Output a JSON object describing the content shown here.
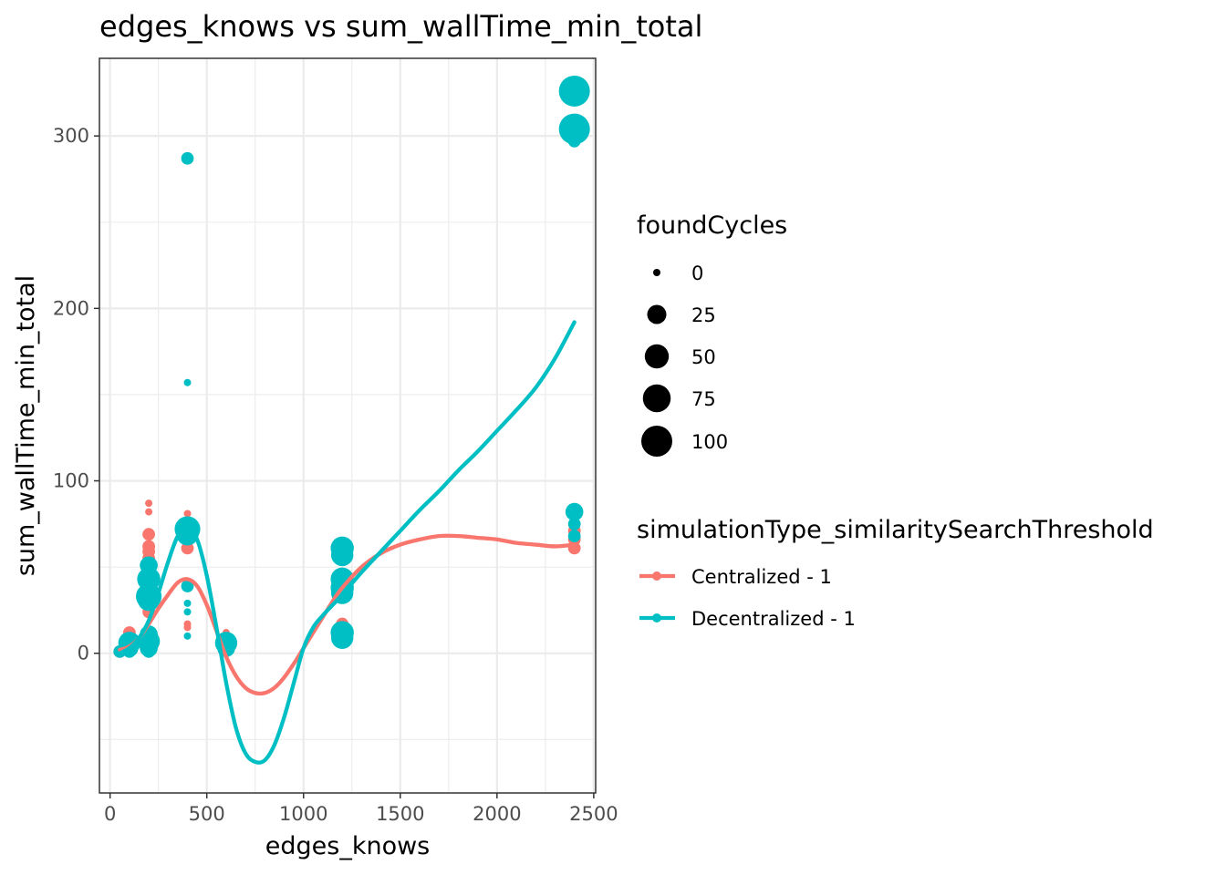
{
  "chart_data": {
    "type": "scatter",
    "title": "edges_knows  vs  sum_wallTime_min_total",
    "xlabel": "edges_knows",
    "ylabel": "sum_wallTime_min_total",
    "xlim": [
      -55,
      2510
    ],
    "ylim": [
      -81,
      345
    ],
    "x_ticks": [
      0,
      500,
      1000,
      1500,
      2000,
      2500
    ],
    "y_ticks": [
      0,
      100,
      200,
      300
    ],
    "grid": true,
    "size_legend": {
      "title": "foundCycles",
      "entries": [
        {
          "label": "0",
          "value": 0
        },
        {
          "label": "25",
          "value": 25
        },
        {
          "label": "50",
          "value": 50
        },
        {
          "label": "75",
          "value": 75
        },
        {
          "label": "100",
          "value": 100
        }
      ]
    },
    "color_legend": {
      "title": "simulationType_similaritySearchThreshold",
      "placement": "right"
    },
    "series": [
      {
        "name": "Centralized - 1",
        "color": "#F8766D",
        "points": [
          {
            "x": 50,
            "y": 1,
            "size": 5
          },
          {
            "x": 100,
            "y": 12,
            "size": 5
          },
          {
            "x": 100,
            "y": 8,
            "size": 5
          },
          {
            "x": 100,
            "y": 4,
            "size": 5
          },
          {
            "x": 200,
            "y": 87,
            "size": 0
          },
          {
            "x": 200,
            "y": 82,
            "size": 0
          },
          {
            "x": 200,
            "y": 69,
            "size": 5
          },
          {
            "x": 200,
            "y": 62,
            "size": 5
          },
          {
            "x": 200,
            "y": 59,
            "size": 5
          },
          {
            "x": 200,
            "y": 55,
            "size": 5
          },
          {
            "x": 200,
            "y": 40,
            "size": 5
          },
          {
            "x": 200,
            "y": 30,
            "size": 5
          },
          {
            "x": 200,
            "y": 24,
            "size": 5
          },
          {
            "x": 200,
            "y": 12,
            "size": 5
          },
          {
            "x": 200,
            "y": 8,
            "size": 5
          },
          {
            "x": 400,
            "y": 81,
            "size": 0
          },
          {
            "x": 400,
            "y": 69,
            "size": 5
          },
          {
            "x": 400,
            "y": 61,
            "size": 5
          },
          {
            "x": 400,
            "y": 17,
            "size": 0
          },
          {
            "x": 400,
            "y": 15,
            "size": 0
          },
          {
            "x": 600,
            "y": 12,
            "size": 0
          },
          {
            "x": 600,
            "y": 9,
            "size": 0
          },
          {
            "x": 1200,
            "y": 62,
            "size": 5
          },
          {
            "x": 1200,
            "y": 41,
            "size": 5
          },
          {
            "x": 1200,
            "y": 17,
            "size": 5
          },
          {
            "x": 1200,
            "y": 12,
            "size": 5
          },
          {
            "x": 2400,
            "y": 71,
            "size": 5
          },
          {
            "x": 2400,
            "y": 66,
            "size": 5
          },
          {
            "x": 2400,
            "y": 61,
            "size": 5
          }
        ],
        "smooth": [
          {
            "x": 50,
            "y": 2
          },
          {
            "x": 100,
            "y": 4
          },
          {
            "x": 150,
            "y": 9
          },
          {
            "x": 200,
            "y": 17
          },
          {
            "x": 250,
            "y": 26
          },
          {
            "x": 300,
            "y": 34
          },
          {
            "x": 350,
            "y": 41
          },
          {
            "x": 400,
            "y": 43
          },
          {
            "x": 450,
            "y": 39
          },
          {
            "x": 500,
            "y": 28
          },
          {
            "x": 550,
            "y": 13
          },
          {
            "x": 600,
            "y": -2
          },
          {
            "x": 650,
            "y": -13
          },
          {
            "x": 700,
            "y": -20
          },
          {
            "x": 750,
            "y": -23
          },
          {
            "x": 800,
            "y": -23
          },
          {
            "x": 850,
            "y": -20
          },
          {
            "x": 900,
            "y": -14
          },
          {
            "x": 950,
            "y": -6
          },
          {
            "x": 1000,
            "y": 3
          },
          {
            "x": 1050,
            "y": 12
          },
          {
            "x": 1100,
            "y": 21
          },
          {
            "x": 1150,
            "y": 30
          },
          {
            "x": 1200,
            "y": 38
          },
          {
            "x": 1300,
            "y": 50
          },
          {
            "x": 1400,
            "y": 58
          },
          {
            "x": 1500,
            "y": 63
          },
          {
            "x": 1600,
            "y": 66
          },
          {
            "x": 1700,
            "y": 68
          },
          {
            "x": 1800,
            "y": 68
          },
          {
            "x": 1900,
            "y": 67
          },
          {
            "x": 2000,
            "y": 66
          },
          {
            "x": 2100,
            "y": 64
          },
          {
            "x": 2200,
            "y": 63
          },
          {
            "x": 2300,
            "y": 62
          },
          {
            "x": 2400,
            "y": 63
          }
        ]
      },
      {
        "name": "Decentralized - 1",
        "color": "#00BFC4",
        "points": [
          {
            "x": 50,
            "y": 1,
            "size": 5
          },
          {
            "x": 100,
            "y": 6,
            "size": 40
          },
          {
            "x": 100,
            "y": 3,
            "size": 20
          },
          {
            "x": 100,
            "y": 1,
            "size": 5
          },
          {
            "x": 200,
            "y": 51,
            "size": 20
          },
          {
            "x": 200,
            "y": 43,
            "size": 45
          },
          {
            "x": 200,
            "y": 33,
            "size": 60
          },
          {
            "x": 200,
            "y": 31,
            "size": 40
          },
          {
            "x": 200,
            "y": 11,
            "size": 20
          },
          {
            "x": 200,
            "y": 7,
            "size": 40
          },
          {
            "x": 200,
            "y": 3,
            "size": 20
          },
          {
            "x": 200,
            "y": 1,
            "size": 5
          },
          {
            "x": 400,
            "y": 287,
            "size": 5
          },
          {
            "x": 400,
            "y": 157,
            "size": 0
          },
          {
            "x": 400,
            "y": 72,
            "size": 60
          },
          {
            "x": 400,
            "y": 69,
            "size": 40
          },
          {
            "x": 400,
            "y": 39,
            "size": 5
          },
          {
            "x": 400,
            "y": 29,
            "size": 0
          },
          {
            "x": 400,
            "y": 24,
            "size": 0
          },
          {
            "x": 400,
            "y": 10,
            "size": 0
          },
          {
            "x": 600,
            "y": 6,
            "size": 40
          },
          {
            "x": 600,
            "y": 3,
            "size": 20
          },
          {
            "x": 1200,
            "y": 61,
            "size": 45
          },
          {
            "x": 1200,
            "y": 57,
            "size": 40
          },
          {
            "x": 1200,
            "y": 43,
            "size": 45
          },
          {
            "x": 1200,
            "y": 38,
            "size": 45
          },
          {
            "x": 1200,
            "y": 35,
            "size": 40
          },
          {
            "x": 1200,
            "y": 12,
            "size": 45
          },
          {
            "x": 1200,
            "y": 9,
            "size": 40
          },
          {
            "x": 2400,
            "y": 326,
            "size": 100
          },
          {
            "x": 2400,
            "y": 304,
            "size": 100
          },
          {
            "x": 2400,
            "y": 297,
            "size": 5
          },
          {
            "x": 2400,
            "y": 82,
            "size": 20
          },
          {
            "x": 2400,
            "y": 75,
            "size": 5
          },
          {
            "x": 2400,
            "y": 68,
            "size": 5
          }
        ],
        "smooth": [
          {
            "x": 50,
            "y": 0
          },
          {
            "x": 100,
            "y": 3
          },
          {
            "x": 150,
            "y": 9
          },
          {
            "x": 200,
            "y": 19
          },
          {
            "x": 250,
            "y": 35
          },
          {
            "x": 300,
            "y": 53
          },
          {
            "x": 350,
            "y": 68
          },
          {
            "x": 400,
            "y": 73
          },
          {
            "x": 450,
            "y": 66
          },
          {
            "x": 500,
            "y": 45
          },
          {
            "x": 550,
            "y": 15
          },
          {
            "x": 600,
            "y": -17
          },
          {
            "x": 650,
            "y": -43
          },
          {
            "x": 700,
            "y": -58
          },
          {
            "x": 750,
            "y": -63
          },
          {
            "x": 800,
            "y": -62
          },
          {
            "x": 850,
            "y": -53
          },
          {
            "x": 900,
            "y": -37
          },
          {
            "x": 950,
            "y": -17
          },
          {
            "x": 1000,
            "y": 3
          },
          {
            "x": 1050,
            "y": 15
          },
          {
            "x": 1100,
            "y": 22
          },
          {
            "x": 1150,
            "y": 28
          },
          {
            "x": 1200,
            "y": 34
          },
          {
            "x": 1300,
            "y": 47
          },
          {
            "x": 1400,
            "y": 59
          },
          {
            "x": 1500,
            "y": 71
          },
          {
            "x": 1600,
            "y": 83
          },
          {
            "x": 1700,
            "y": 94
          },
          {
            "x": 1800,
            "y": 106
          },
          {
            "x": 1900,
            "y": 117
          },
          {
            "x": 2000,
            "y": 129
          },
          {
            "x": 2100,
            "y": 141
          },
          {
            "x": 2200,
            "y": 154
          },
          {
            "x": 2300,
            "y": 171
          },
          {
            "x": 2400,
            "y": 192
          }
        ]
      }
    ]
  }
}
